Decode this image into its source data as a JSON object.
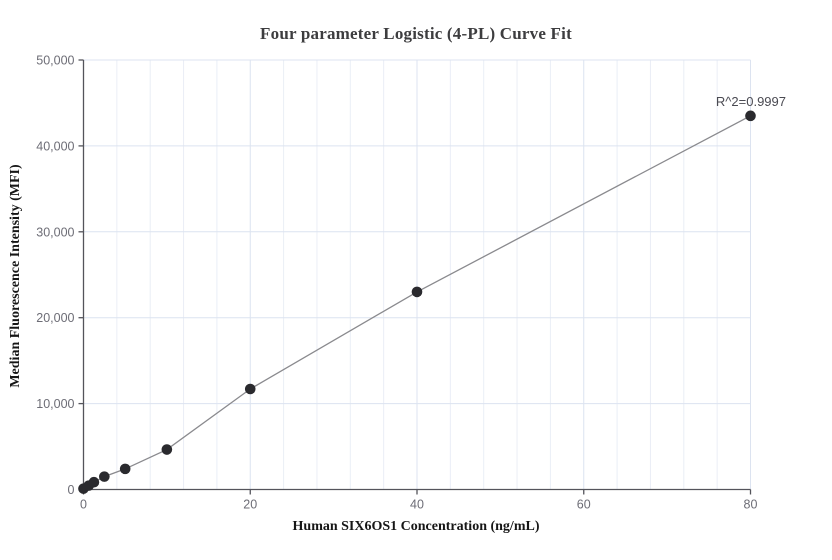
{
  "chart_data": {
    "type": "scatter",
    "title": "Four parameter Logistic (4-PL) Curve Fit",
    "xlabel": "Human SIX6OS1 Concentration (ng/mL)",
    "ylabel": "Median Fluorescence Intensity (MFI)",
    "annotation": "R^2=0.9997",
    "x": [
      0,
      0.625,
      1.25,
      2.5,
      5,
      10,
      20,
      40,
      80
    ],
    "y": [
      100,
      450,
      850,
      1500,
      2400,
      4650,
      11700,
      23000,
      43500
    ],
    "xlim": [
      0,
      80
    ],
    "ylim": [
      0,
      50000
    ],
    "x_ticks": [
      0,
      20,
      40,
      60,
      80
    ],
    "y_ticks": [
      0,
      10000,
      20000,
      30000,
      40000,
      50000
    ],
    "x_minor_step": 4,
    "grid": "on",
    "legend": "none",
    "colors": {
      "point": "#2a2a2e",
      "fit_line": "#8a8a8e",
      "grid_minor": "#eaeef6",
      "grid_major": "#dce3f0",
      "axis": "#54545b",
      "tick_label": "#6d6d76",
      "title": "#3d3d3f",
      "axis_label": "#161616",
      "annotation": "#4a4a52"
    }
  }
}
